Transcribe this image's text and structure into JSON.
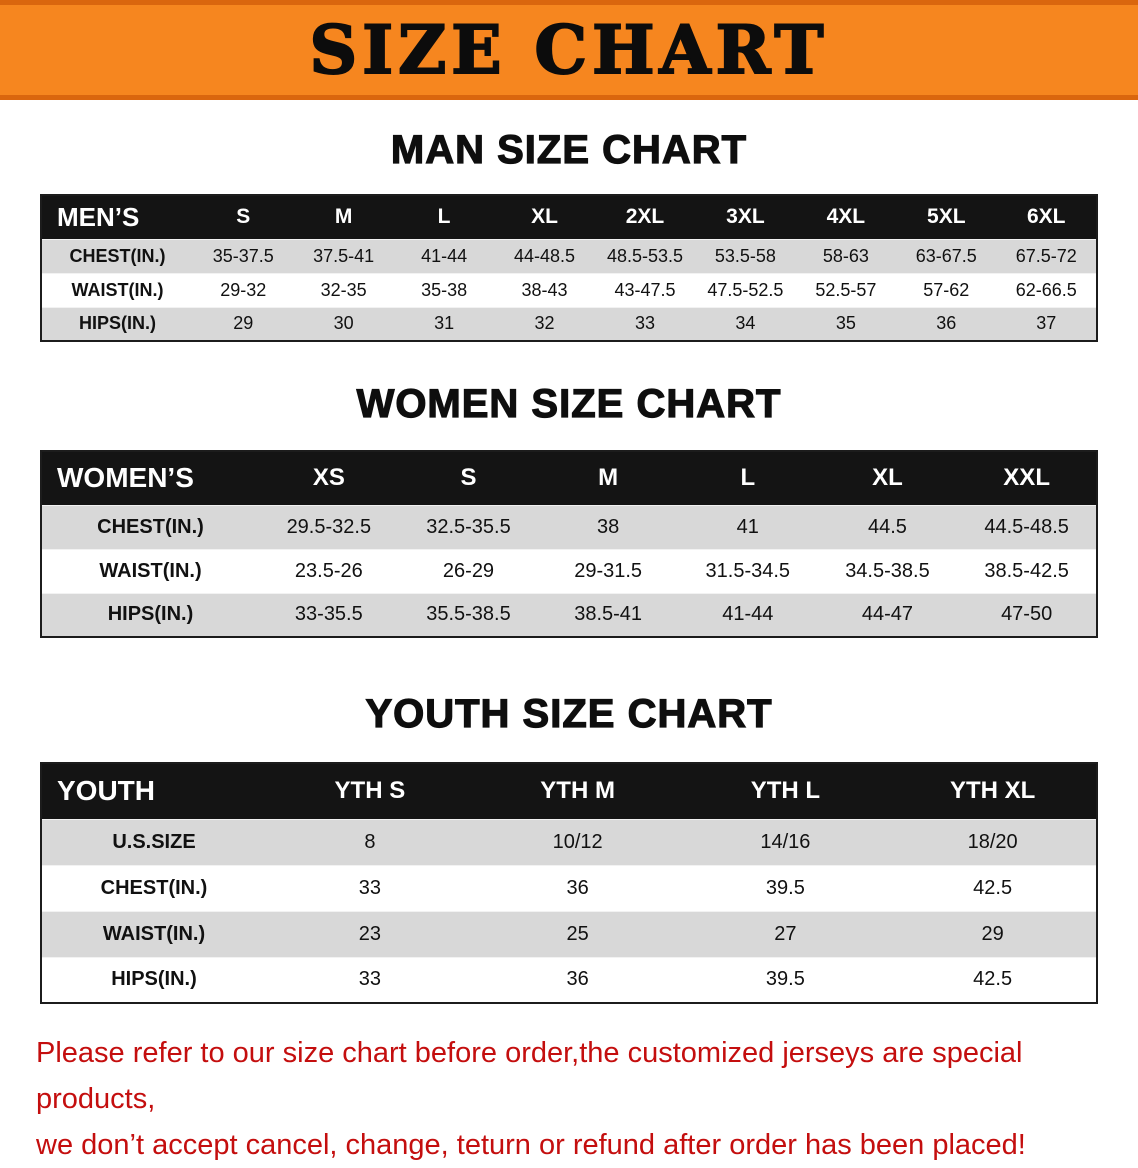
{
  "banner": {
    "title": "SIZE CHART",
    "bg_color": "#f6861f",
    "edge_color": "#da660e"
  },
  "chart_data": [
    {
      "type": "table",
      "title": "MAN SIZE CHART",
      "columns": [
        "MEN’S",
        "S",
        "M",
        "L",
        "XL",
        "2XL",
        "3XL",
        "4XL",
        "5XL",
        "6XL"
      ],
      "rows": [
        [
          "CHEST(IN.)",
          "35-37.5",
          "37.5-41",
          "41-44",
          "44-48.5",
          "48.5-53.5",
          "53.5-58",
          "58-63",
          "63-67.5",
          "67.5-72"
        ],
        [
          "WAIST(IN.)",
          "29-32",
          "32-35",
          "35-38",
          "38-43",
          "43-47.5",
          "47.5-52.5",
          "52.5-57",
          "57-62",
          "62-66.5"
        ],
        [
          "HIPS(IN.)",
          "29",
          "30",
          "31",
          "32",
          "33",
          "34",
          "35",
          "36",
          "37"
        ]
      ]
    },
    {
      "type": "table",
      "title": "WOMEN SIZE CHART",
      "columns": [
        "WOMEN’S",
        "XS",
        "S",
        "M",
        "L",
        "XL",
        "XXL"
      ],
      "rows": [
        [
          "CHEST(IN.)",
          "29.5-32.5",
          "32.5-35.5",
          "38",
          "41",
          "44.5",
          "44.5-48.5"
        ],
        [
          "WAIST(IN.)",
          "23.5-26",
          "26-29",
          "29-31.5",
          "31.5-34.5",
          "34.5-38.5",
          "38.5-42.5"
        ],
        [
          "HIPS(IN.)",
          "33-35.5",
          "35.5-38.5",
          "38.5-41",
          "41-44",
          "44-47",
          "47-50"
        ]
      ]
    },
    {
      "type": "table",
      "title": "YOUTH SIZE CHART",
      "columns": [
        "YOUTH",
        "YTH S",
        "YTH M",
        "YTH L",
        "YTH XL"
      ],
      "rows": [
        [
          "U.S.SIZE",
          "8",
          "10/12",
          "14/16",
          "18/20"
        ],
        [
          "CHEST(IN.)",
          "33",
          "36",
          "39.5",
          "42.5"
        ],
        [
          "WAIST(IN.)",
          "23",
          "25",
          "27",
          "29"
        ],
        [
          "HIPS(IN.)",
          "33",
          "36",
          "39.5",
          "42.5"
        ]
      ]
    }
  ],
  "disclaimer": {
    "line1": "Please refer to our size chart before order,the customized jerseys are special products,",
    "line2": "we don’t accept cancel, change, teturn or refund after order has been placed!",
    "color": "#c40e0e"
  }
}
